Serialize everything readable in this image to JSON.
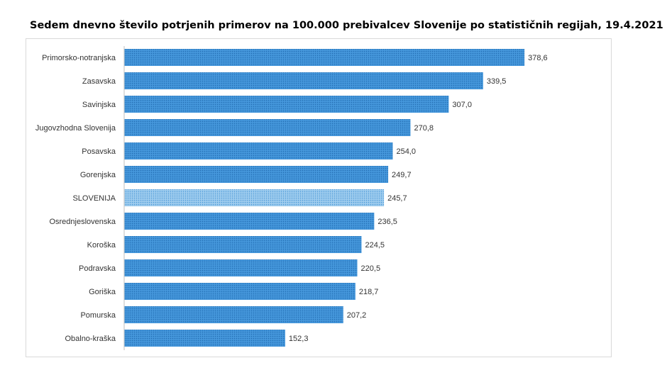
{
  "chart_data": {
    "type": "bar",
    "orientation": "horizontal",
    "title": "Sedem dnevno število potrjenih primerov na 100.000  prebivalcev Slovenije po statističnih regijah, 19.4.2021",
    "categories": [
      "Primorsko-notranjska",
      "Zasavska",
      "Savinjska",
      "Jugovzhodna Slovenija",
      "Posavska",
      "Gorenjska",
      "SLOVENIJA",
      "Osrednjeslovenska",
      "Koroška",
      "Podravska",
      "Goriška",
      "Pomurska",
      "Obalno-kraška"
    ],
    "values": [
      378.6,
      339.5,
      307.0,
      270.8,
      254.0,
      249.7,
      245.7,
      236.5,
      224.5,
      220.5,
      218.7,
      207.2,
      152.3
    ],
    "value_labels": [
      "378,6",
      "339,5",
      "307,0",
      "270,8",
      "254,0",
      "249,7",
      "245,7",
      "236,5",
      "224,5",
      "220,5",
      "218,7",
      "207,2",
      "152,3"
    ],
    "highlight": "SLOVENIJA",
    "xlim": [
      0,
      400
    ],
    "grid": false,
    "xaxis_visible": false,
    "colors": {
      "bar": "#3b8fd6",
      "highlight_bar": "#8ec3ea"
    }
  }
}
